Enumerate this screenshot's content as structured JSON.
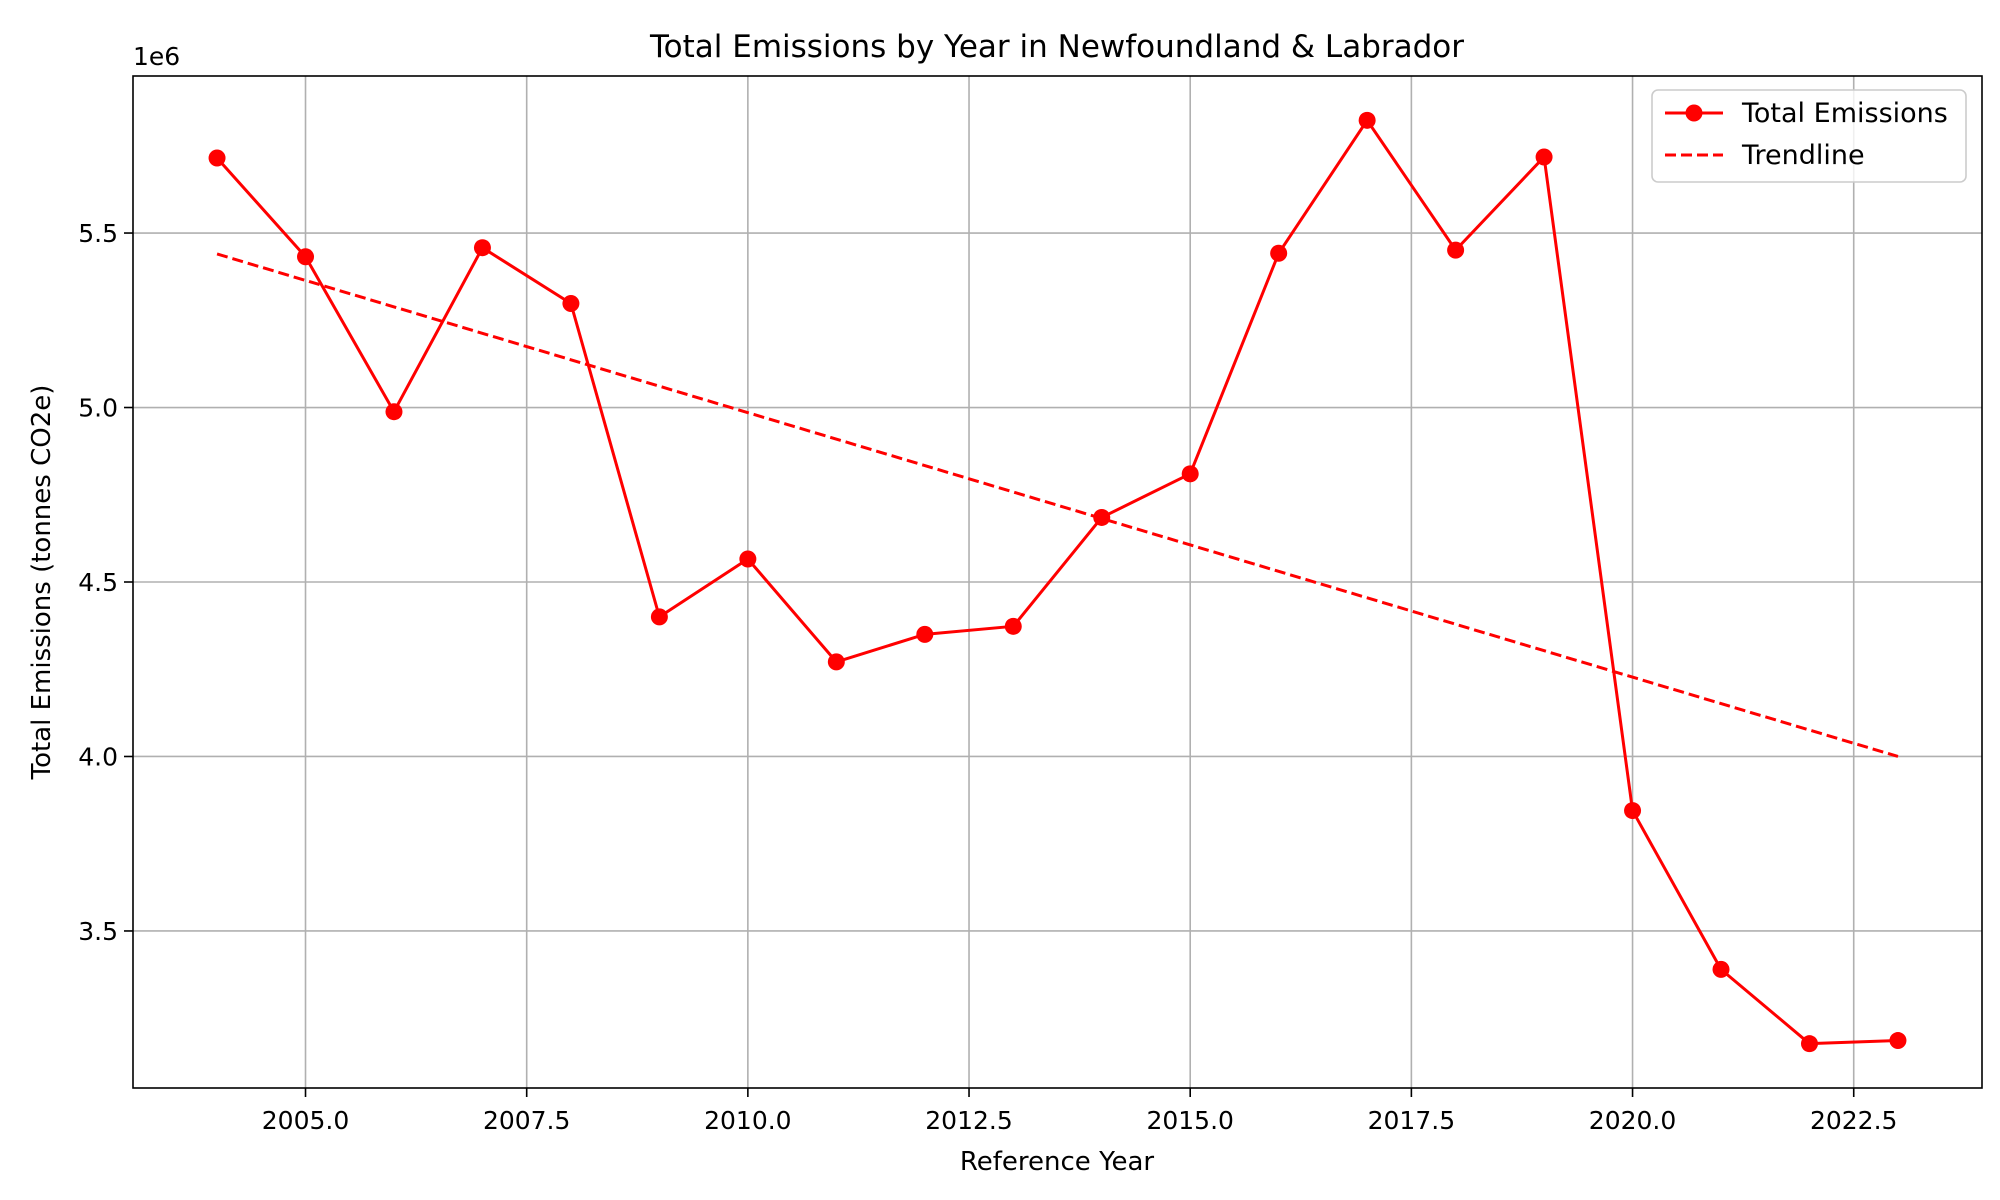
{
  "chart_data": {
    "type": "line",
    "title": "Total Emissions by Year in Newfoundland & Labrador",
    "xlabel": "Reference Year",
    "ylabel": "Total Emissions (tonnes CO2e)",
    "y_offset_label": "1e6",
    "xlim": [
      2003.05,
      2023.95
    ],
    "ylim": [
      3.05,
      5.95
    ],
    "x_ticks": [
      2005.0,
      2007.5,
      2010.0,
      2012.5,
      2015.0,
      2017.5,
      2020.0,
      2022.5
    ],
    "x_tick_labels": [
      "2005.0",
      "2007.5",
      "2010.0",
      "2012.5",
      "2015.0",
      "2017.5",
      "2020.0",
      "2022.5"
    ],
    "y_ticks": [
      3.5,
      4.0,
      4.5,
      5.0,
      5.5
    ],
    "y_tick_labels": [
      "3.5",
      "4.0",
      "4.5",
      "5.0",
      "5.5"
    ],
    "grid": true,
    "legend_position": "top-right",
    "series": [
      {
        "name": "Total Emissions",
        "style": "solid-line-with-circle-markers",
        "color": "#ff0000",
        "x": [
          2004,
          2005,
          2006,
          2007,
          2008,
          2009,
          2010,
          2011,
          2012,
          2013,
          2014,
          2015,
          2016,
          2017,
          2018,
          2019,
          2020,
          2021,
          2022,
          2023
        ],
        "y": [
          5.715,
          5.432,
          4.988,
          5.458,
          5.298,
          4.4,
          4.566,
          4.271,
          4.35,
          4.373,
          4.685,
          4.81,
          5.442,
          5.823,
          5.451,
          5.718,
          3.845,
          3.39,
          3.177,
          3.186
        ]
      },
      {
        "name": "Trendline",
        "style": "dashed-line",
        "color": "#ff0000",
        "x": [
          2004,
          2023
        ],
        "y": [
          5.44,
          4.0
        ]
      }
    ]
  }
}
